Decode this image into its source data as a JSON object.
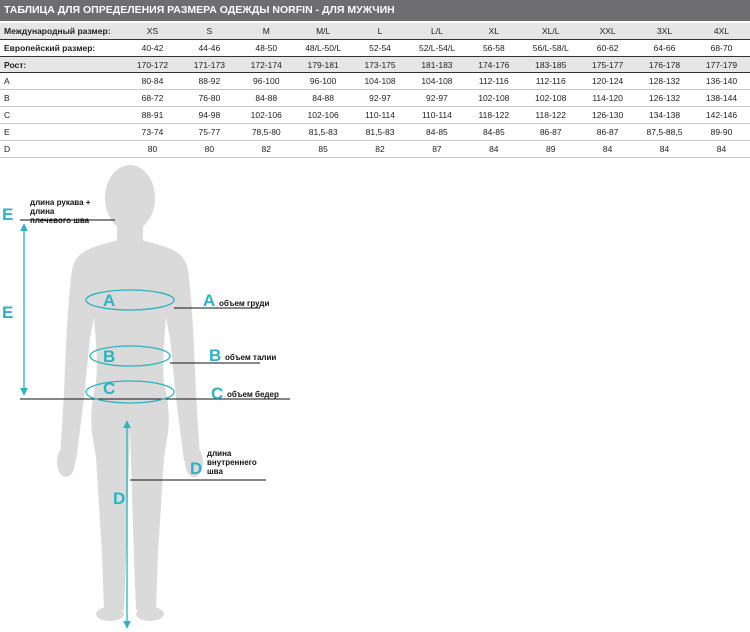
{
  "title": "ТАБЛИЦА ДЛЯ ОПРЕДЕЛЕНИЯ РАЗМЕРА ОДЕЖДЫ NORFIN - ДЛЯ МУЖЧИН",
  "table": {
    "international_label": "Международный размер:",
    "european_label": "Европейский размер:",
    "height_label": "Рост:",
    "international": [
      "XS",
      "S",
      "M",
      "M/L",
      "L",
      "L/L",
      "XL",
      "XL/L",
      "XXL",
      "3XL",
      "4XL"
    ],
    "european": [
      "40-42",
      "44-46",
      "48-50",
      "48/L-50/L",
      "52-54",
      "52/L-54/L",
      "56-58",
      "56/L-58/L",
      "60-62",
      "64-66",
      "68-70"
    ],
    "height": [
      "170-172",
      "171-173",
      "172-174",
      "179-181",
      "173-175",
      "181-183",
      "174-176",
      "183-185",
      "175-177",
      "176-178",
      "177-179"
    ],
    "rows": [
      {
        "label": "A",
        "values": [
          "80-84",
          "88-92",
          "96-100",
          "96-100",
          "104-108",
          "104-108",
          "112-116",
          "112-116",
          "120-124",
          "128-132",
          "136-140"
        ]
      },
      {
        "label": "B",
        "values": [
          "68-72",
          "76-80",
          "84-88",
          "84-88",
          "92-97",
          "92-97",
          "102-108",
          "102-108",
          "114-120",
          "126-132",
          "138-144"
        ]
      },
      {
        "label": "C",
        "values": [
          "88-91",
          "94-98",
          "102-106",
          "102-106",
          "110-114",
          "110-114",
          "118-122",
          "118-122",
          "126-130",
          "134-138",
          "142-146"
        ]
      },
      {
        "label": "E",
        "values": [
          "73-74",
          "75-77",
          "78,5-80",
          "81,5-83",
          "81,5-83",
          "84-85",
          "84-85",
          "86-87",
          "86-87",
          "87,5-88,5",
          "89-90"
        ]
      },
      {
        "label": "D",
        "values": [
          "80",
          "80",
          "82",
          "85",
          "82",
          "87",
          "84",
          "89",
          "84",
          "84",
          "84"
        ]
      }
    ]
  },
  "diagram": {
    "letters": {
      "a": "A",
      "b": "B",
      "c": "C",
      "d": "D",
      "e": "E"
    },
    "labels": {
      "e_line1": "длина рукава +",
      "e_line2": "длина",
      "e_line3": "плечевого шва",
      "a": "объем груди",
      "b": "объем талии",
      "c": "объем бедер",
      "d_line1": "длина",
      "d_line2": "внутреннего",
      "d_line3": "шва"
    },
    "colors": {
      "accent": "#2ab3c1",
      "body": "#dadada",
      "header": "#6e6e70"
    }
  }
}
